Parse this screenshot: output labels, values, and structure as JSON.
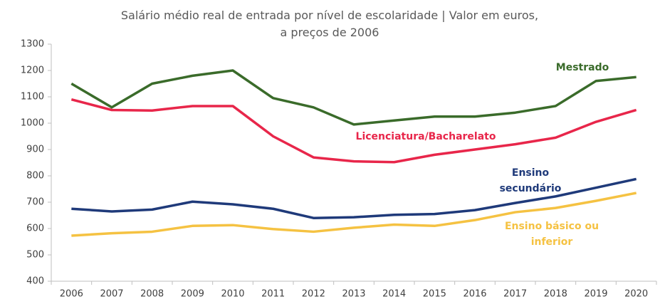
{
  "chart_data": {
    "type": "line",
    "title": "Salário médio real de entrada por nível de escolaridade | Valor em euros, a preços de 2006",
    "categories": [
      "2006",
      "2007",
      "2008",
      "2009",
      "2010",
      "2011",
      "2012",
      "2013",
      "2014",
      "2015",
      "2016",
      "2017",
      "2018",
      "2019",
      "2020"
    ],
    "series": [
      {
        "name": "Mestrado",
        "color": "#3a6b2a",
        "values": [
          1150,
          1060,
          1150,
          1180,
          1200,
          1095,
          1060,
          995,
          1010,
          1025,
          1025,
          1040,
          1065,
          1160,
          1175
        ]
      },
      {
        "name": "Licenciatura/Bacharelato",
        "color": "#e8264a",
        "values": [
          1090,
          1050,
          1048,
          1065,
          1065,
          950,
          870,
          855,
          852,
          880,
          900,
          920,
          945,
          1005,
          1050
        ]
      },
      {
        "name": "Ensino secundário",
        "color": "#1f3a7a",
        "values": [
          675,
          665,
          672,
          702,
          692,
          675,
          640,
          643,
          652,
          655,
          670,
          697,
          722,
          755,
          788
        ]
      },
      {
        "name": "Ensino básico ou inferior",
        "color": "#f5c242",
        "values": [
          573,
          582,
          588,
          610,
          613,
          598,
          588,
          603,
          615,
          610,
          632,
          662,
          678,
          705,
          735
        ]
      }
    ],
    "ylim": [
      400,
      1300
    ],
    "yticks": [
      400,
      500,
      600,
      700,
      800,
      900,
      1000,
      1100,
      1200,
      1300
    ],
    "grid": false
  }
}
